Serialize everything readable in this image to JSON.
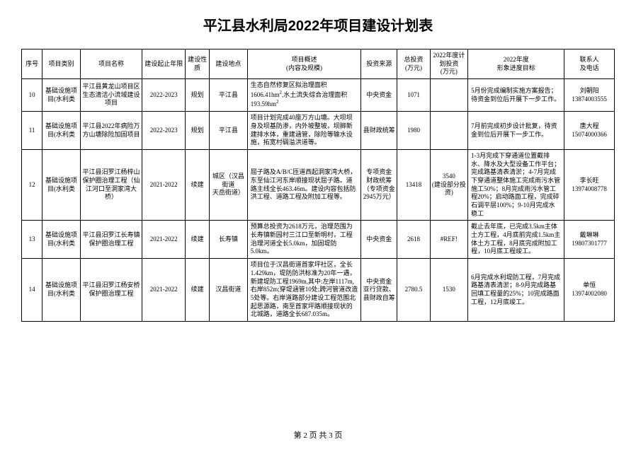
{
  "title": "平江县水利局2022年项目建设计划表",
  "columns": [
    "序号",
    "项目类别",
    "项目名称",
    "建设起止年限",
    "建设性质",
    "建设地点",
    "项目概述\n(内容及规模)",
    "投资来源",
    "总投资\n(万元)",
    "2022年度计划投资\n(万元)",
    "2022年度\n形象进度目标",
    "联系人\n及电话"
  ],
  "rows": [
    {
      "seq": "10",
      "type": "基础设施项目(水利类",
      "name": "平江县黄龙山项目区生态清洁小流域建设项目",
      "period": "2022-2023",
      "nature": "规划",
      "location": "平江县",
      "overview": "生态自然修复区拟治理面积1606.41hm²,水土流失综合治理面积193.59hm²",
      "source": "中央资金",
      "total": "1071",
      "plan": "",
      "goal": "5月份完成编制实施方案报告；待资金到位后开展下一步工作。",
      "contact": "刘朝阳\n13874003555"
    },
    {
      "seq": "11",
      "type": "基础设施项目(水利类",
      "name": "平江县2022年病险万方山塘除险加固项目",
      "period": "2022-2023",
      "nature": "规划",
      "location": "平江县",
      "overview": "项目计划完成40座万方山塘。大坝坝身及坝基防渗，内外坡整坡，坝脚新建排水体，重建涵管，除险等输水设施，拓宽村碉溢洪道等。",
      "source": "县财政统筹",
      "total": "1980",
      "plan": "",
      "goal": "7月前完成初步设计批复，待资金到位后开展下一步工作。",
      "contact": "唐大程\n15074000366"
    },
    {
      "seq": "12",
      "type": "基础设施项目(水利类",
      "name": "平江县汨罗江杨梓山保护圈治理工程（仙江河口至洞家湾大 桥）",
      "period": "2021-2022",
      "nature": "续建",
      "location": "城区（汉昌街道\n天岳街道）",
      "overview": "屈子路及A/B/C匝道西起洞家湾大桥，东至仙江河东岸顺接现状屈子路。道路主线全长463.46m。建设内容包括防洪工程、道路工程及附加工程等。",
      "source": "专项资金\n财政统筹（专项资金2945万元）",
      "total": "13418",
      "plan": "3540\n(建设部分投资)",
      "goal": "1-3月完成下穿通道位置截排水、降水及大型设备工作平台；完成路基清表清淤；4-7月完成下穿通道整体施工完成雨污水管施工50%；8月完成雨污水管工程20%；启动路面工程，完成碎石调平层100%；9-10月完成水稳工",
      "contact": "李长旺\n13974008778"
    },
    {
      "seq": "13",
      "type": "基础设施项目(水利类",
      "name": "平江县汨罗江长寿镇保护圈治理工程",
      "period": "2021-2022",
      "nature": "续建",
      "location": "长寿镇",
      "overview": "预算总投资为2618万元，治理范围为长寿镇新园村三江口至新明村，工程治理河道全长5.0km，加固堤防5.0km。",
      "source": "中央资金",
      "total": "2618",
      "plan": "#REF!",
      "goal": "截止去年底，已完成3.5km主体土方工程，4月底前完成1.5km主体土方工程，8月底完成附加工程，10月底工程竣工。",
      "contact": "戴琳琳\n19807301777"
    },
    {
      "seq": "14",
      "type": "基础设施项目(水利类",
      "name": "平江县汨罗江杨安桥保护圈治理工程",
      "period": "2021-2022",
      "nature": "续建",
      "location": "汉昌街道",
      "overview": "项目位于汉昌街道首家坪社区，全长1.429km，堤防防洪标准为20年一遇，新建堤防工程1969m,其中:左岸1117m,右岸852m;穿堤涵管10处;跨河管道改造5处等。右岸道路部分建设工程范围北起思源路，南至首家坪路顺接现状的北城路，道路全长687.035m。",
      "source": "中央资金\n亚行贷款、县财政自筹",
      "total": "2780.5",
      "plan": "1530",
      "goal": "6月完成水利堤防工程，7月完成路基清表清淤；8-9月完成路基回填工程量的25%；10完成路面工程，12月底竣工。",
      "contact": "单恒\n13974002080"
    }
  ],
  "footer": "第 2 页 共 3 页"
}
